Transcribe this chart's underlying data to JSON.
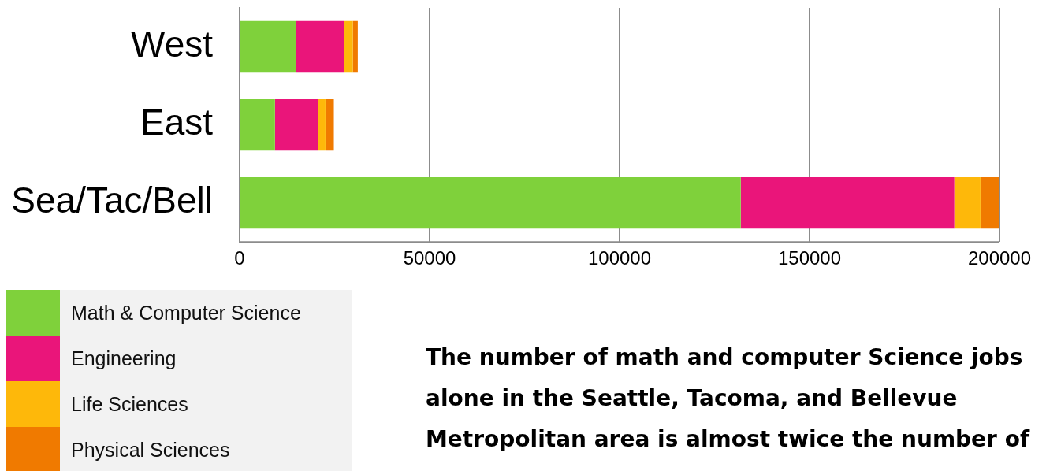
{
  "chart_data": {
    "type": "bar",
    "orientation": "horizontal",
    "stacked": true,
    "categories": [
      "West",
      "East",
      "Sea/Tac/Bell"
    ],
    "series": [
      {
        "name": "Math & Computer Science",
        "color": "#7fd13b",
        "values": [
          14900,
          9300,
          131900
        ]
      },
      {
        "name": "Engineering",
        "color": "#ea157a",
        "values": [
          12600,
          11400,
          56200
        ]
      },
      {
        "name": "Life Sciences",
        "color": "#feb80a",
        "values": [
          2300,
          1900,
          6900
        ]
      },
      {
        "name": "Physical Sciences",
        "color": "#f07a00",
        "values": [
          1300,
          2200,
          5000
        ]
      }
    ],
    "xlim": [
      0,
      200000
    ],
    "xticks": [
      0,
      50000,
      100000,
      150000,
      200000
    ],
    "grid": "x",
    "legend": "bottom left",
    "annotations": [
      "The number of math and computer Science jobs alone in the Seattle, Tacoma, and Bellevue Metropolitan area is almost twice the number of"
    ]
  }
}
